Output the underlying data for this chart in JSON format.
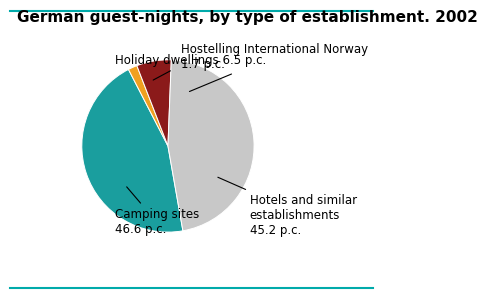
{
  "title": "German guest-nights, by type of establishment. 2002",
  "slices": [
    {
      "label": "Hotels and similar\nestablishments\n45.2 p.c.",
      "value": 45.2,
      "color": "#1a9e9e"
    },
    {
      "label": "Hostelling International Norway\n1.7 p.c.",
      "value": 1.7,
      "color": "#f0a020"
    },
    {
      "label": "Holiday dwellings 6.5 p.c.",
      "value": 6.5,
      "color": "#8b1a1a"
    },
    {
      "label": "Camping sites\n46.6 p.c.",
      "value": 46.6,
      "color": "#c8c8c8"
    }
  ],
  "title_fontsize": 11,
  "label_fontsize": 8.5,
  "title_color": "#000000",
  "background_color": "#ffffff",
  "border_top_color": "#00aaaa",
  "border_bottom_color": "#00aaaa"
}
